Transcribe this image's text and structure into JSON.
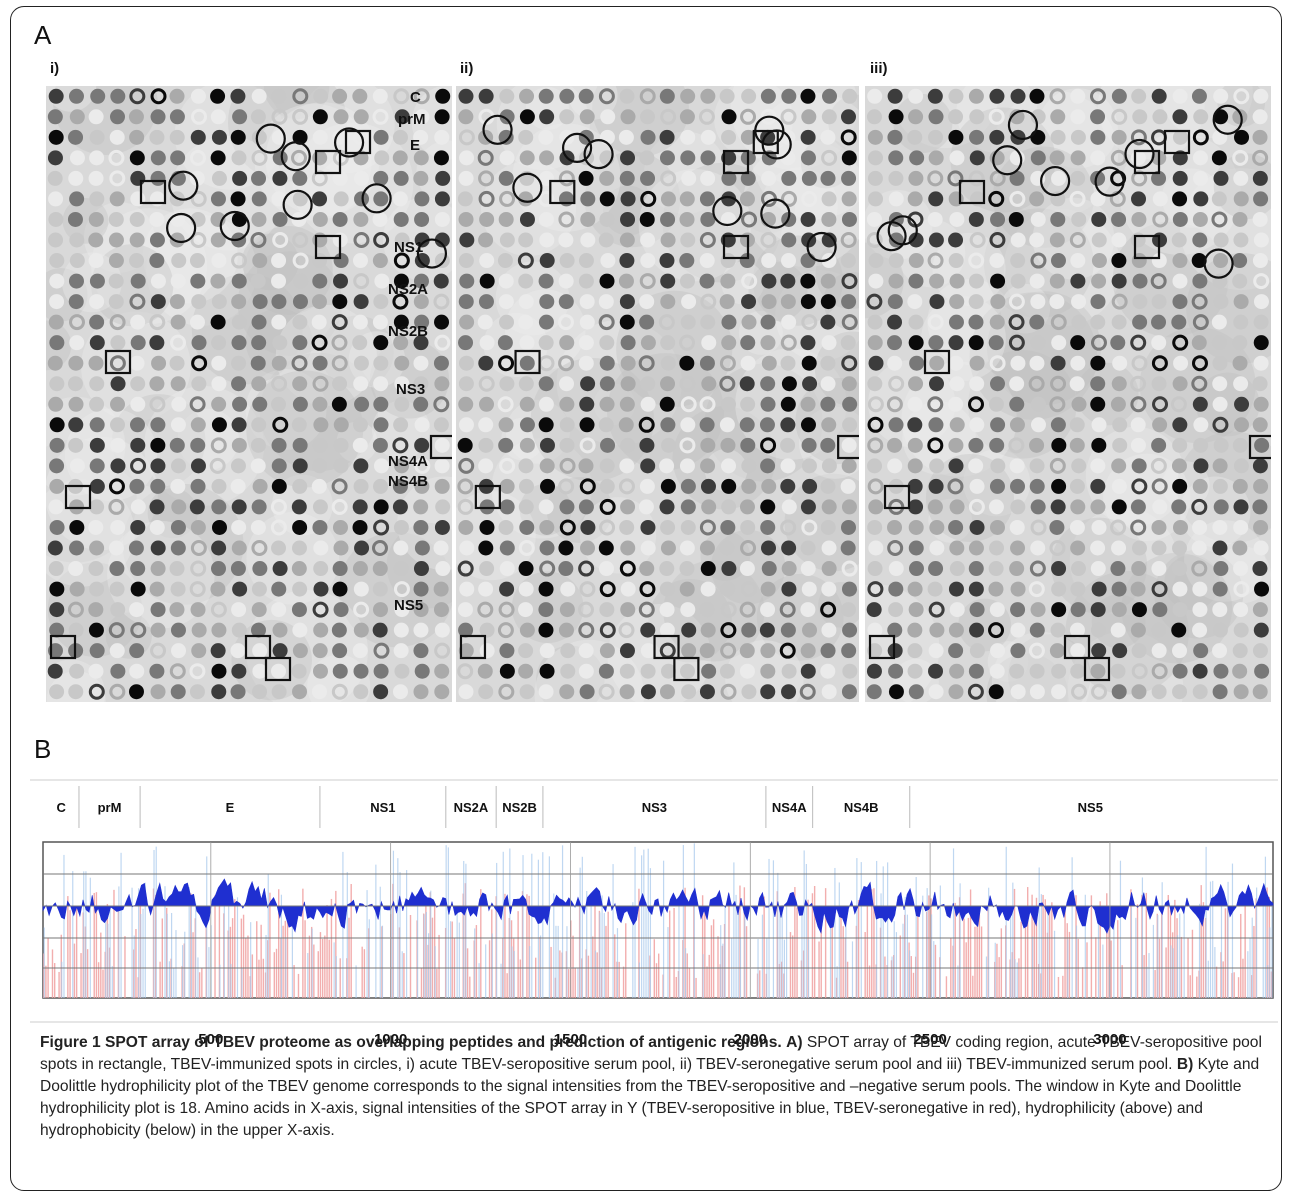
{
  "figure": {
    "panel_a_letter": "A",
    "panel_b_letter": "B",
    "sub_panels": [
      {
        "label": "i)"
      },
      {
        "label": "ii)"
      },
      {
        "label": "iii)"
      }
    ],
    "array_region_labels": [
      "C",
      "prM",
      "E",
      "NS1",
      "NS2A",
      "NS2B",
      "NS3",
      "NS4A",
      "NS4B",
      "NS5"
    ]
  },
  "chart_data": {
    "type": "area",
    "title": "",
    "xlabel": "",
    "ylabel": "",
    "x_ticks": [
      500,
      1000,
      1500,
      2000,
      2500,
      3000
    ],
    "xlim": [
      0,
      3420
    ],
    "grid": true,
    "regions": [
      {
        "name": "C",
        "start": 1,
        "end": 100
      },
      {
        "name": "prM",
        "start": 100,
        "end": 270
      },
      {
        "name": "E",
        "start": 270,
        "end": 770
      },
      {
        "name": "NS1",
        "start": 770,
        "end": 1120
      },
      {
        "name": "NS2A",
        "start": 1120,
        "end": 1260
      },
      {
        "name": "NS2B",
        "start": 1260,
        "end": 1390
      },
      {
        "name": "NS3",
        "start": 1390,
        "end": 2010
      },
      {
        "name": "NS4A",
        "start": 2010,
        "end": 2140
      },
      {
        "name": "NS4B",
        "start": 2140,
        "end": 2410
      },
      {
        "name": "NS5",
        "start": 2410,
        "end": 3414
      }
    ],
    "series": [
      {
        "role": "hydrophilicity",
        "color": "#1f2fd0"
      },
      {
        "role": "seropositive",
        "color": "#a9c9ec"
      },
      {
        "role": "seronegative",
        "color": "#f0a0a0"
      }
    ]
  },
  "caption": {
    "figure_label": "Figure 1",
    "title": "SPOT array of TBEV proteome as overlapping peptides and prediction of antigenic regions.",
    "a_label": "A)",
    "a_text": "SPOT array of TBEV coding region, acute TBEV-seropositive pool spots in rectangle, TBEV-immunized spots in circles, i) acute TBEV-seropositive serum pool, ii) TBEV-seronegative serum pool and iii) TBEV-immunized serum pool.",
    "b_label": "B)",
    "b_text": "Kyte and Doolittle hydrophilicity plot of the TBEV genome corresponds to the signal intensities from the TBEV-seropositive and –negative serum pools. The window in Kyte and Doolittle hydrophilicity plot is 18. Amino acids in X-axis, signal intensities of the SPOT array in Y (TBEV-seropositive in blue, TBEV-seronegative in red), hydrophilicity (above) and hydrophobicity (below) in the upper X-axis."
  }
}
